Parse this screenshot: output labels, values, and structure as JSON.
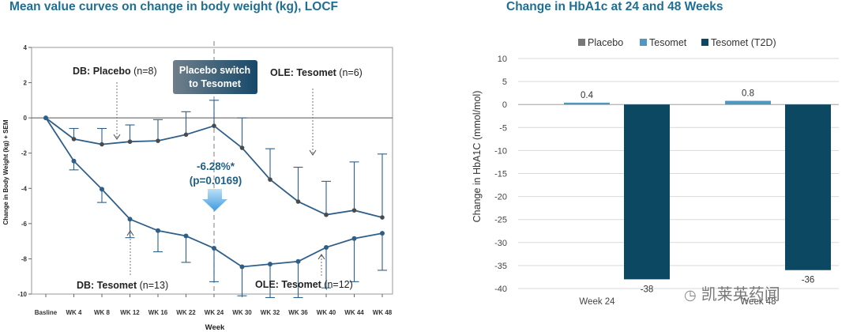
{
  "left_chart_title": "Mean value curves on change in body weight (kg), LOCF",
  "right_chart_title": "Change in HbA1c at 24 and 48 Weeks",
  "watermark": {
    "text": "凯莱英药闻",
    "logo_icon": "wechat-icon"
  },
  "colors": {
    "title": "#1f6f93",
    "curve": "#2e5f8a",
    "placebo_bar": "#777777",
    "tesomet_bar": "#4f97c0",
    "t2d_bar": "#0d4863",
    "switch_box_from": "#6f7f8a",
    "switch_box_to": "#17496a"
  },
  "chart_data": [
    {
      "type": "line",
      "title": "Mean value curves on change in body weight (kg), LOCF",
      "xlabel": "Week",
      "ylabel": "Change in Body Weight (kg) + SEM",
      "categories": [
        "Basline",
        "WK 4",
        "WK 8",
        "WK 12",
        "WK 16",
        "WK 22",
        "WK 24",
        "WK 30",
        "WK 32",
        "WK 36",
        "WK 40",
        "WK 44",
        "WK 48"
      ],
      "ylim": [
        -10,
        4
      ],
      "yticks": [
        4,
        2,
        0,
        -2,
        -4,
        -6,
        -8,
        -10
      ],
      "series": [
        {
          "name": "DB: Placebo → OLE: Tesomet",
          "values": [
            0,
            -1.2,
            -1.5,
            -1.35,
            -1.3,
            -0.95,
            -0.45,
            -1.7,
            -3.5,
            -4.75,
            -5.5,
            -5.25,
            -5.65
          ],
          "err": [
            0,
            0.6,
            0.9,
            0.95,
            1.2,
            1.3,
            1.45,
            1.7,
            1.75,
            1.95,
            1.9,
            2.75,
            3.6
          ]
        },
        {
          "name": "DB: Tesomet → OLE: Tesomet",
          "values": [
            0,
            -2.45,
            -4.05,
            -5.75,
            -6.4,
            -6.7,
            -7.4,
            -8.45,
            -8.3,
            -8.15,
            -7.35,
            -6.85,
            -6.55
          ],
          "err": [
            0,
            0.5,
            0.75,
            1.05,
            1.2,
            1.5,
            1.9,
            1.65,
            1.9,
            2.05,
            2.3,
            2.45,
            2.1
          ]
        }
      ],
      "annotations": [
        {
          "id": "db_placebo",
          "bold": "DB: Placebo",
          "normal": " (n=8)"
        },
        {
          "id": "db_tesomet",
          "bold": "DB: Tesomet",
          "normal": " (n=13)"
        },
        {
          "id": "ole_tesomet_top",
          "bold": "OLE: Tesomet",
          "normal": " (n=6)"
        },
        {
          "id": "ole_tesomet_bottom",
          "bold": "OLE: Tesomet",
          "normal": " (n=12)"
        },
        {
          "id": "diff_pct",
          "text": "-6.28%*"
        },
        {
          "id": "diff_p",
          "text": "(p=0.0169)"
        }
      ],
      "switch_box": [
        "Placebo switch",
        "to Tesomet"
      ]
    },
    {
      "type": "bar",
      "title": "Change in HbA1c at 24 and 48 Weeks",
      "ylabel": "Change in HbA1C (mmol/mol)",
      "categories": [
        "Week 24",
        "Week 48"
      ],
      "legend": [
        "Placebo",
        "Tesomet",
        "Tesomet (T2D)"
      ],
      "legend_position": "top",
      "ylim": [
        -40,
        10
      ],
      "yticks": [
        10,
        5,
        0,
        -5,
        -10,
        -15,
        -20,
        -25,
        -30,
        -35,
        -40
      ],
      "series": [
        {
          "name": "Placebo",
          "values": [
            null,
            null
          ]
        },
        {
          "name": "Tesomet",
          "values": [
            0.4,
            0.8
          ],
          "labels": [
            "0.4",
            "0.8"
          ]
        },
        {
          "name": "Tesomet (T2D)",
          "values": [
            -38,
            -36
          ],
          "labels": [
            "-38",
            "-36"
          ]
        }
      ]
    }
  ]
}
